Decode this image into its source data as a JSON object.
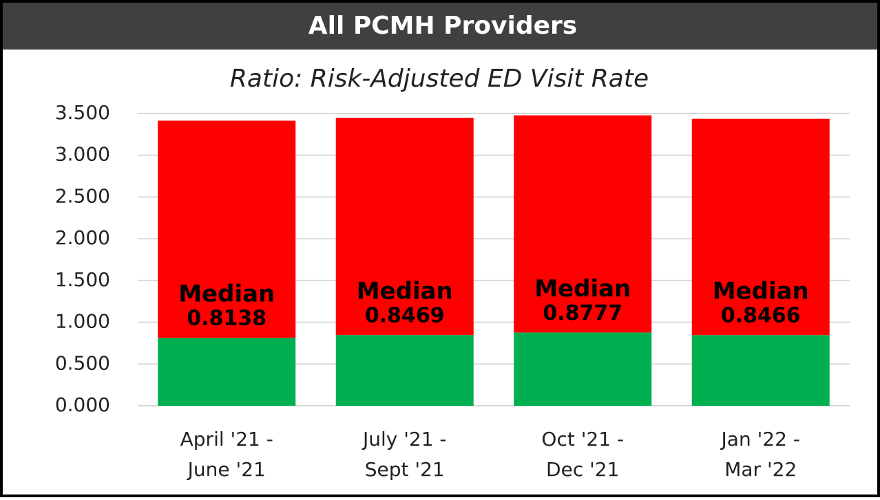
{
  "chart_data": {
    "type": "stacked_bar",
    "title": "All PCMH Providers",
    "subtitle": "Ratio: Risk-Adjusted ED Visit Rate",
    "categories": [
      [
        "April '21 -",
        "June '21"
      ],
      [
        "July '21 -",
        "Sept '21"
      ],
      [
        "Oct '21 -",
        "Dec '21"
      ],
      [
        "Jan '22 -",
        "Mar '22"
      ]
    ],
    "series": [
      {
        "name": "Median",
        "color": "#00b050",
        "values": [
          0.8138,
          0.8469,
          0.8777,
          0.8466
        ]
      },
      {
        "color": "#ff0000",
        "values": [
          2.6,
          2.6,
          2.6,
          2.59
        ]
      }
    ],
    "data_label_title": "Median",
    "ylim": [
      0,
      3.5
    ],
    "yticks": [
      {
        "value": 0,
        "label": "0.000"
      },
      {
        "value": 0.5,
        "label": "0.500"
      },
      {
        "value": 1,
        "label": "1.000"
      },
      {
        "value": 1.5,
        "label": "1.500"
      },
      {
        "value": 2,
        "label": "2.000"
      },
      {
        "value": 2.5,
        "label": "2.500"
      },
      {
        "value": 3,
        "label": "3.000"
      },
      {
        "value": 3.5,
        "label": "3.500"
      }
    ],
    "grid": true
  }
}
